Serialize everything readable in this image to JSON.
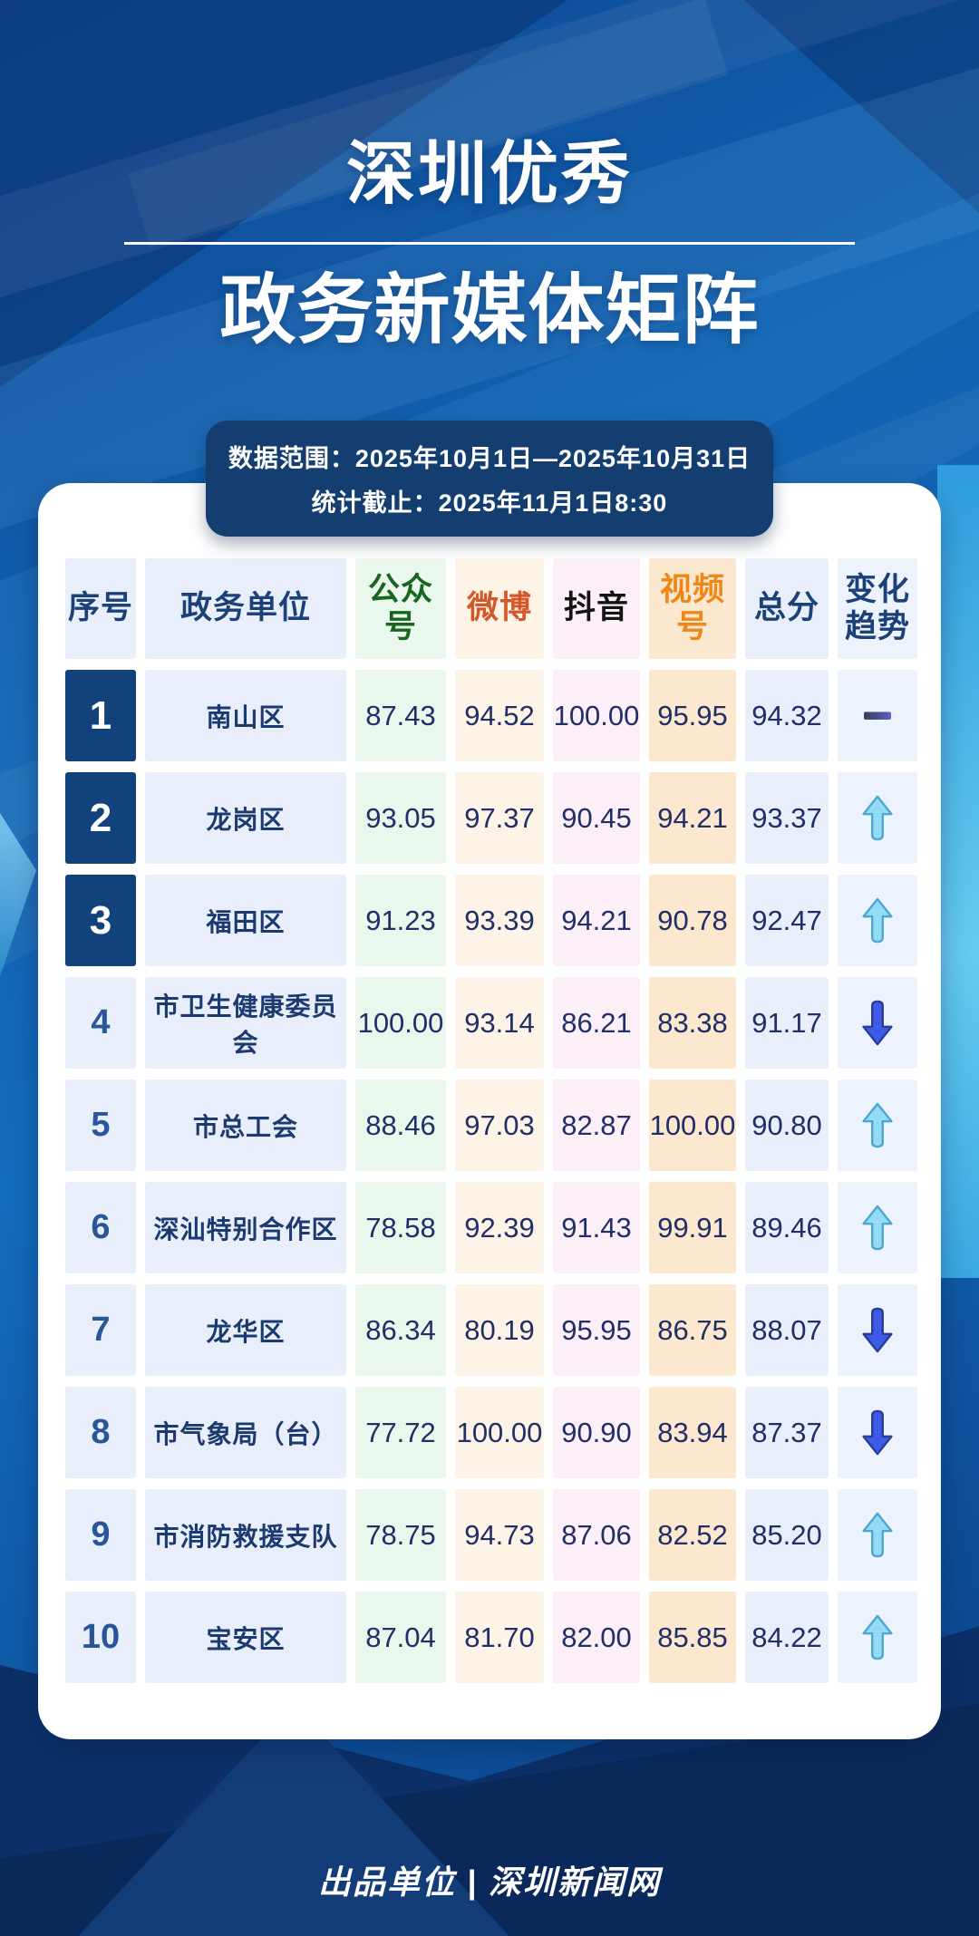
{
  "title": {
    "line1": "深圳优秀",
    "line2": "政务新媒体矩阵"
  },
  "banner": {
    "line1": "数据范围：2025年10月1日—2025年10月31日",
    "line2": "统计截止：2025年11月1日8:30"
  },
  "chart_data": {
    "type": "table",
    "title": "深圳优秀政务新媒体矩阵",
    "columns": [
      "序号",
      "政务单位",
      "公众号",
      "微博",
      "抖音",
      "视频号",
      "总分",
      "变化趋势"
    ],
    "rows": [
      {
        "rank": "1",
        "unit": "南山区",
        "wechat": "87.43",
        "weibo": "94.52",
        "douyin": "100.00",
        "channels": "95.95",
        "total": "94.32",
        "trend": "flat"
      },
      {
        "rank": "2",
        "unit": "龙岗区",
        "wechat": "93.05",
        "weibo": "97.37",
        "douyin": "90.45",
        "channels": "94.21",
        "total": "93.37",
        "trend": "up"
      },
      {
        "rank": "3",
        "unit": "福田区",
        "wechat": "91.23",
        "weibo": "93.39",
        "douyin": "94.21",
        "channels": "90.78",
        "total": "92.47",
        "trend": "up"
      },
      {
        "rank": "4",
        "unit": "市卫生健康委员会",
        "wechat": "100.00",
        "weibo": "93.14",
        "douyin": "86.21",
        "channels": "83.38",
        "total": "91.17",
        "trend": "down"
      },
      {
        "rank": "5",
        "unit": "市总工会",
        "wechat": "88.46",
        "weibo": "97.03",
        "douyin": "82.87",
        "channels": "100.00",
        "total": "90.80",
        "trend": "up"
      },
      {
        "rank": "6",
        "unit": "深汕特别合作区",
        "wechat": "78.58",
        "weibo": "92.39",
        "douyin": "91.43",
        "channels": "99.91",
        "total": "89.46",
        "trend": "up"
      },
      {
        "rank": "7",
        "unit": "龙华区",
        "wechat": "86.34",
        "weibo": "80.19",
        "douyin": "95.95",
        "channels": "86.75",
        "total": "88.07",
        "trend": "down"
      },
      {
        "rank": "8",
        "unit": "市气象局（台）",
        "wechat": "77.72",
        "weibo": "100.00",
        "douyin": "90.90",
        "channels": "83.94",
        "total": "87.37",
        "trend": "down"
      },
      {
        "rank": "9",
        "unit": "市消防救援支队",
        "wechat": "78.75",
        "weibo": "94.73",
        "douyin": "87.06",
        "channels": "82.52",
        "total": "85.20",
        "trend": "up"
      },
      {
        "rank": "10",
        "unit": "宝安区",
        "wechat": "87.04",
        "weibo": "81.70",
        "douyin": "82.00",
        "channels": "85.85",
        "total": "84.22",
        "trend": "up"
      }
    ]
  },
  "footer": {
    "credit": "出品单位 | 深圳新闻网"
  },
  "colors": {
    "rank_top_bg": "#12427C",
    "banner_bg": "#133E6F",
    "header_navy": "#1C4078",
    "header_green": "#17651F",
    "header_red": "#D4572A",
    "header_black": "#141414",
    "header_orange": "#F08616",
    "trend_up_fill": "#92DCF8",
    "trend_up_stroke": "#4FA8CC",
    "trend_down_fill": "#3D5AE8",
    "trend_down_stroke": "#2C3E94"
  }
}
